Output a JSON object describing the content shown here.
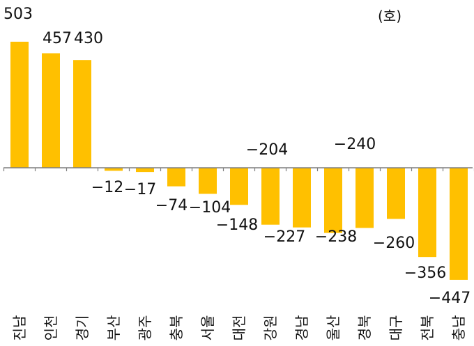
{
  "chart_data": {
    "type": "bar",
    "unit_label": "(호)",
    "categories": [
      "진남",
      "인천",
      "경기",
      "부산",
      "광주",
      "충북",
      "서울",
      "대전",
      "강원",
      "경남",
      "울산",
      "경북",
      "대구",
      "전북",
      "충남"
    ],
    "values": [
      503,
      457,
      430,
      -12,
      -17,
      -74,
      -104,
      -148,
      -227,
      -238,
      -260,
      -240,
      -204,
      -356,
      -447
    ],
    "data_labels": [
      "503",
      "457",
      "430",
      "−12",
      "−17",
      "−74",
      "−104",
      "−148",
      "−227",
      "−238",
      "−260",
      "−240",
      "−204",
      "−356",
      "−447"
    ],
    "bar_color": "#FFC000",
    "axis_color": "#7f7f7f",
    "legend": "none",
    "grid": false
  }
}
